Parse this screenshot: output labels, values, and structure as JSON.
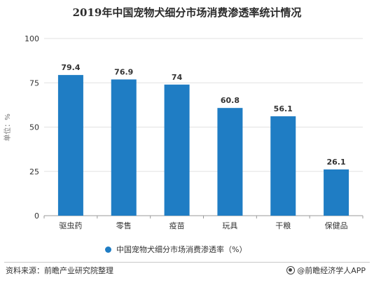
{
  "chart_data": {
    "type": "bar",
    "title": "2019年中国宠物犬细分市场消费渗透率统计情况",
    "ylabel": "单位：%",
    "categories": [
      "驱虫药",
      "零售",
      "疫苗",
      "玩具",
      "干粮",
      "保健品"
    ],
    "values": [
      79.4,
      76.9,
      74,
      60.8,
      56.1,
      26.1
    ],
    "value_labels": [
      "79.4",
      "76.9",
      "74",
      "60.8",
      "56.1",
      "26.1"
    ],
    "yticks": [
      "0",
      "25",
      "50",
      "75",
      "100"
    ],
    "ylim": [
      0,
      100
    ],
    "grid": true,
    "bar_color": "#1f7dc4",
    "legend": {
      "label": "中国宠物犬细分市场消费渗透率（%）",
      "position": "bottom"
    }
  },
  "footer": {
    "source": "资料来源：前瞻产业研究院整理",
    "brand": "@前瞻经济学人APP"
  }
}
